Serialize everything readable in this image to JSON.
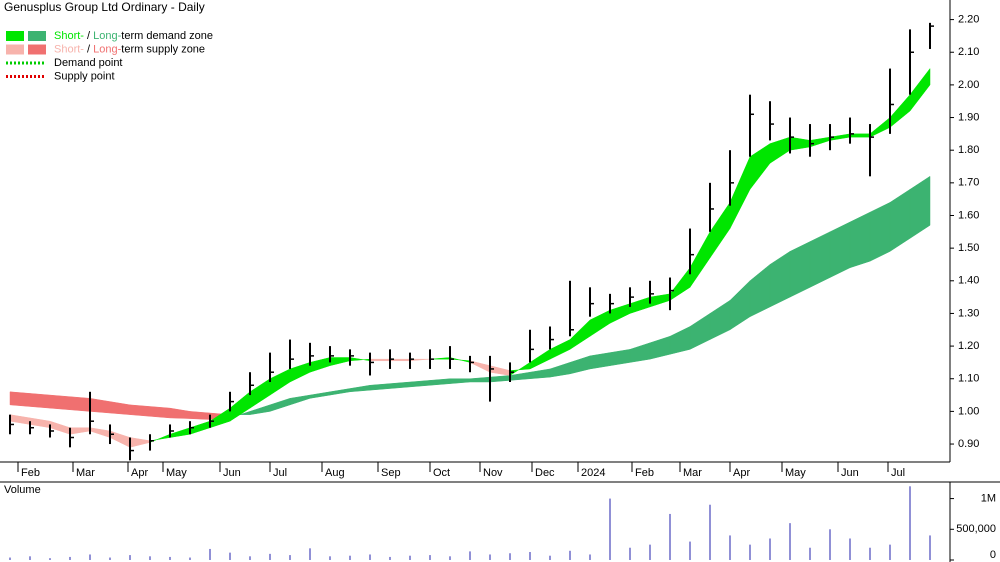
{
  "chart_data": {
    "type": "hlc",
    "title": "Genusplus Group Ltd Ordinary - Daily",
    "legend": [
      {
        "parts": [
          "Short-",
          " / ",
          "Long-",
          "term demand zone"
        ],
        "colors": [
          "#00e600",
          "#3cb371"
        ]
      },
      {
        "parts": [
          "Short-",
          " / ",
          "Long-",
          "term supply zone"
        ],
        "colors": [
          "#f7b3ac",
          "#f07070"
        ]
      },
      {
        "parts": [
          "Demand point"
        ],
        "colors": [
          "#00cc00"
        ]
      },
      {
        "parts": [
          "Supply point"
        ],
        "colors": [
          "#e00000"
        ]
      }
    ],
    "xlim": [
      -0.5,
      47
    ],
    "xticks": [
      {
        "value": 0.4,
        "label": "Feb"
      },
      {
        "value": 3.15,
        "label": "Mar"
      },
      {
        "value": 5.9,
        "label": "Apr"
      },
      {
        "value": 7.65,
        "label": "May"
      },
      {
        "value": 10.5,
        "label": "Jun"
      },
      {
        "value": 13,
        "label": "Jul"
      },
      {
        "value": 15.6,
        "label": "Aug"
      },
      {
        "value": 18.4,
        "label": "Sep"
      },
      {
        "value": 21,
        "label": "Oct"
      },
      {
        "value": 23.5,
        "label": "Nov"
      },
      {
        "value": 26.1,
        "label": "Dec"
      },
      {
        "value": 28.4,
        "label": "2024"
      },
      {
        "value": 31.1,
        "label": "Feb"
      },
      {
        "value": 33.5,
        "label": "Mar"
      },
      {
        "value": 36,
        "label": "Apr"
      },
      {
        "value": 38.6,
        "label": "May"
      },
      {
        "value": 41.4,
        "label": "Jun"
      },
      {
        "value": 43.9,
        "label": "Jul"
      }
    ],
    "ylim": [
      0.845,
      2.26
    ],
    "yticks": [
      {
        "value": 0.9,
        "label": "0.90"
      },
      {
        "value": 1.0,
        "label": "1.00"
      },
      {
        "value": 1.1,
        "label": "1.10"
      },
      {
        "value": 1.2,
        "label": "1.20"
      },
      {
        "value": 1.3,
        "label": "1.30"
      },
      {
        "value": 1.4,
        "label": "1.40"
      },
      {
        "value": 1.5,
        "label": "1.50"
      },
      {
        "value": 1.6,
        "label": "1.60"
      },
      {
        "value": 1.7,
        "label": "1.70"
      },
      {
        "value": 1.8,
        "label": "1.80"
      },
      {
        "value": 1.9,
        "label": "1.90"
      },
      {
        "value": 2.0,
        "label": "2.00"
      },
      {
        "value": 2.1,
        "label": "2.10"
      },
      {
        "value": 2.2,
        "label": "2.20"
      }
    ],
    "high": [
      0.99,
      0.97,
      0.96,
      0.95,
      1.06,
      0.96,
      0.92,
      0.93,
      0.96,
      0.97,
      0.99,
      1.06,
      1.12,
      1.18,
      1.22,
      1.21,
      1.2,
      1.19,
      1.18,
      1.19,
      1.18,
      1.19,
      1.2,
      1.17,
      1.17,
      1.15,
      1.25,
      1.26,
      1.4,
      1.38,
      1.36,
      1.38,
      1.4,
      1.41,
      1.56,
      1.7,
      1.8,
      1.97,
      1.95,
      1.9,
      1.88,
      1.88,
      1.9,
      1.88,
      2.05,
      2.17,
      2.19
    ],
    "low": [
      0.93,
      0.93,
      0.92,
      0.89,
      0.93,
      0.9,
      0.85,
      0.88,
      0.92,
      0.93,
      0.95,
      1.0,
      1.05,
      1.09,
      1.13,
      1.14,
      1.15,
      1.14,
      1.11,
      1.13,
      1.13,
      1.13,
      1.13,
      1.12,
      1.03,
      1.09,
      1.15,
      1.19,
      1.23,
      1.29,
      1.3,
      1.32,
      1.33,
      1.31,
      1.42,
      1.55,
      1.63,
      1.78,
      1.83,
      1.79,
      1.78,
      1.8,
      1.82,
      1.72,
      1.85,
      1.97,
      2.11
    ],
    "close": [
      0.96,
      0.95,
      0.94,
      0.92,
      0.97,
      0.93,
      0.88,
      0.91,
      0.94,
      0.95,
      0.97,
      1.03,
      1.08,
      1.12,
      1.16,
      1.17,
      1.17,
      1.17,
      1.15,
      1.16,
      1.16,
      1.16,
      1.16,
      1.15,
      1.13,
      1.12,
      1.19,
      1.22,
      1.25,
      1.33,
      1.33,
      1.35,
      1.36,
      1.37,
      1.48,
      1.62,
      1.7,
      1.91,
      1.88,
      1.84,
      1.82,
      1.84,
      1.85,
      1.84,
      1.94,
      2.1,
      2.18
    ],
    "short_fast": [
      0.97,
      0.96,
      0.95,
      0.93,
      0.94,
      0.92,
      0.89,
      0.905,
      0.93,
      0.95,
      0.97,
      1.01,
      1.06,
      1.1,
      1.13,
      1.15,
      1.165,
      1.165,
      1.155,
      1.155,
      1.155,
      1.16,
      1.165,
      1.15,
      1.12,
      1.11,
      1.15,
      1.19,
      1.22,
      1.28,
      1.31,
      1.33,
      1.35,
      1.36,
      1.44,
      1.55,
      1.64,
      1.78,
      1.82,
      1.84,
      1.83,
      1.84,
      1.85,
      1.85,
      1.9,
      1.97,
      2.05
    ],
    "short_slow": [
      0.99,
      0.98,
      0.97,
      0.95,
      0.95,
      0.94,
      0.92,
      0.91,
      0.92,
      0.93,
      0.95,
      0.97,
      1.01,
      1.05,
      1.09,
      1.12,
      1.14,
      1.155,
      1.16,
      1.16,
      1.16,
      1.16,
      1.16,
      1.155,
      1.14,
      1.125,
      1.13,
      1.16,
      1.19,
      1.23,
      1.27,
      1.3,
      1.32,
      1.34,
      1.38,
      1.47,
      1.56,
      1.68,
      1.76,
      1.8,
      1.81,
      1.83,
      1.84,
      1.84,
      1.87,
      1.92,
      2.0
    ],
    "long_fast": [
      1.02,
      1.015,
      1.01,
      1.005,
      1.0,
      0.995,
      0.99,
      0.985,
      0.98,
      0.978,
      0.975,
      0.98,
      1.0,
      1.02,
      1.04,
      1.05,
      1.06,
      1.07,
      1.08,
      1.085,
      1.09,
      1.095,
      1.1,
      1.1,
      1.105,
      1.11,
      1.12,
      1.13,
      1.15,
      1.17,
      1.18,
      1.19,
      1.21,
      1.23,
      1.26,
      1.3,
      1.34,
      1.4,
      1.45,
      1.49,
      1.52,
      1.55,
      1.58,
      1.61,
      1.64,
      1.68,
      1.72
    ],
    "long_slow": [
      1.06,
      1.055,
      1.05,
      1.045,
      1.04,
      1.03,
      1.02,
      1.015,
      1.01,
      1.0,
      0.995,
      0.99,
      0.99,
      1.0,
      1.02,
      1.04,
      1.05,
      1.06,
      1.065,
      1.07,
      1.075,
      1.08,
      1.085,
      1.09,
      1.09,
      1.095,
      1.1,
      1.105,
      1.115,
      1.13,
      1.14,
      1.15,
      1.16,
      1.175,
      1.19,
      1.22,
      1.25,
      1.29,
      1.32,
      1.35,
      1.38,
      1.41,
      1.44,
      1.46,
      1.49,
      1.53,
      1.57
    ],
    "volume_label": "Volume",
    "volume": [
      40000,
      60000,
      30000,
      50000,
      90000,
      40000,
      80000,
      60000,
      50000,
      40000,
      180000,
      120000,
      60000,
      100000,
      80000,
      190000,
      60000,
      70000,
      90000,
      50000,
      70000,
      80000,
      60000,
      140000,
      90000,
      110000,
      130000,
      70000,
      150000,
      90000,
      1000000,
      200000,
      250000,
      750000,
      300000,
      900000,
      400000,
      250000,
      350000,
      600000,
      200000,
      500000,
      350000,
      200000,
      250000,
      1200000,
      400000
    ],
    "volume_color": "#6a6ac8",
    "volume_ylim": [
      0,
      1270000
    ],
    "volume_yticks": [
      0,
      {
        "value": 500000,
        "label": "500,000"
      },
      {
        "value": 1000000,
        "label": "1M"
      }
    ],
    "bar_color": "#000000"
  }
}
